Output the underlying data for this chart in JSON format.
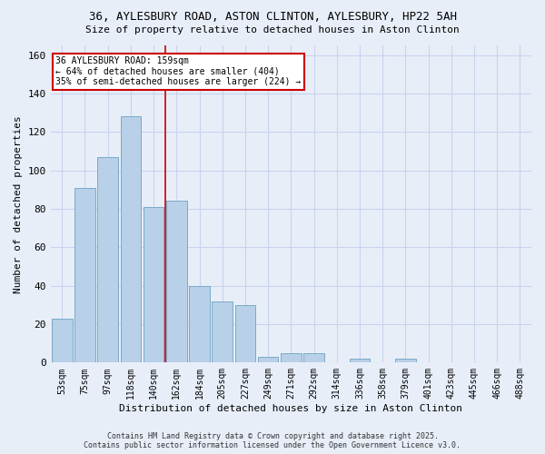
{
  "title1": "36, AYLESBURY ROAD, ASTON CLINTON, AYLESBURY, HP22 5AH",
  "title2": "Size of property relative to detached houses in Aston Clinton",
  "xlabel": "Distribution of detached houses by size in Aston Clinton",
  "ylabel": "Number of detached properties",
  "categories": [
    "53sqm",
    "75sqm",
    "97sqm",
    "118sqm",
    "140sqm",
    "162sqm",
    "184sqm",
    "205sqm",
    "227sqm",
    "249sqm",
    "271sqm",
    "292sqm",
    "314sqm",
    "336sqm",
    "358sqm",
    "379sqm",
    "401sqm",
    "423sqm",
    "445sqm",
    "466sqm",
    "488sqm"
  ],
  "values": [
    23,
    91,
    107,
    128,
    81,
    84,
    40,
    32,
    30,
    3,
    5,
    5,
    0,
    2,
    0,
    2,
    0,
    0,
    0,
    0,
    0
  ],
  "bar_color": "#b8d0e8",
  "bar_edge_color": "#7aaac8",
  "grid_color": "#c8d4ee",
  "background_color": "#e8eef8",
  "ref_line_x": 4.5,
  "ref_line_color": "#cc0000",
  "annotation_text": "36 AYLESBURY ROAD: 159sqm\n← 64% of detached houses are smaller (404)\n35% of semi-detached houses are larger (224) →",
  "annotation_box_color": "#ffffff",
  "annotation_box_edge": "#cc0000",
  "footnote1": "Contains HM Land Registry data © Crown copyright and database right 2025.",
  "footnote2": "Contains public sector information licensed under the Open Government Licence v3.0.",
  "ylim": [
    0,
    165
  ],
  "yticks": [
    0,
    20,
    40,
    60,
    80,
    100,
    120,
    140,
    160
  ]
}
